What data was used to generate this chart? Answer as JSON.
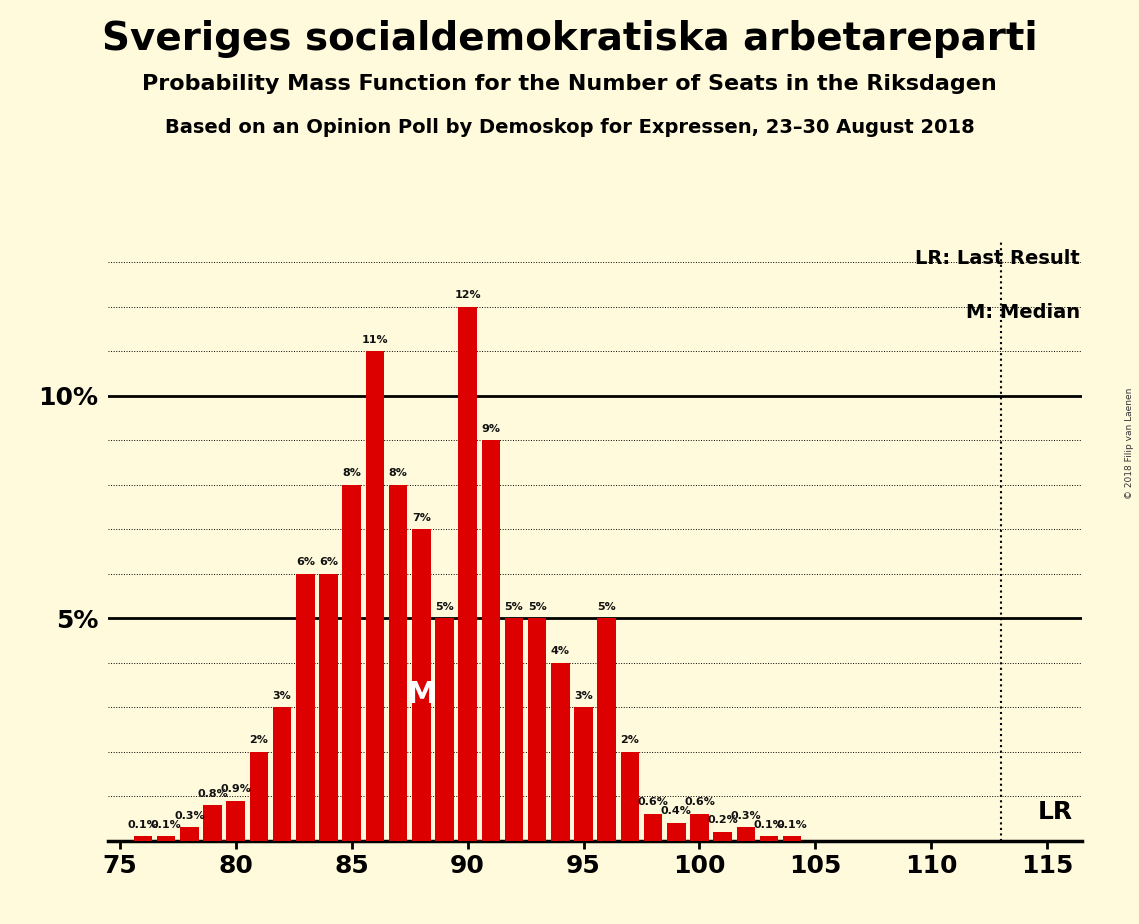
{
  "title": "Sveriges socialdemokratiska arbetareparti",
  "subtitle1": "Probability Mass Function for the Number of Seats in the Riksdagen",
  "subtitle2": "Based on an Opinion Poll by Demoskop for Expressen, 23–30 August 2018",
  "copyright": "© 2018 Filip van Laenen",
  "seats": [
    75,
    76,
    77,
    78,
    79,
    80,
    81,
    82,
    83,
    84,
    85,
    86,
    87,
    88,
    89,
    90,
    91,
    92,
    93,
    94,
    95,
    96,
    97,
    98,
    99,
    100,
    101,
    102,
    103,
    104,
    105,
    106,
    107,
    108,
    109,
    110,
    111,
    112,
    113,
    114,
    115
  ],
  "probabilities": [
    0.0,
    0.1,
    0.1,
    0.3,
    0.8,
    0.9,
    2.0,
    3.0,
    6.0,
    6.0,
    8.0,
    11.0,
    8.0,
    7.0,
    5.0,
    12.0,
    9.0,
    5.0,
    5.0,
    4.0,
    3.0,
    5.0,
    2.0,
    0.6,
    0.4,
    0.6,
    0.2,
    0.3,
    0.1,
    0.1,
    0.0,
    0.0,
    0.0,
    0.0,
    0.0,
    0.0,
    0.0,
    0.0,
    0.0,
    0.0,
    0.0
  ],
  "bar_color": "#DD0000",
  "background_color": "#FFFADC",
  "median_seat": 88,
  "lr_seat": 113,
  "xlim_min": 74.5,
  "xlim_max": 116.5,
  "ylim_min": 0,
  "ylim_max": 13.5,
  "xticks": [
    75,
    80,
    85,
    90,
    95,
    100,
    105,
    110,
    115
  ],
  "lr_label": "LR: Last Result",
  "m_label": "M: Median",
  "title_fontsize": 28,
  "subtitle1_fontsize": 16,
  "subtitle2_fontsize": 14,
  "tick_fontsize": 18,
  "ytick_fontsize": 18,
  "label_fontsize": 8,
  "legend_fontsize": 14
}
